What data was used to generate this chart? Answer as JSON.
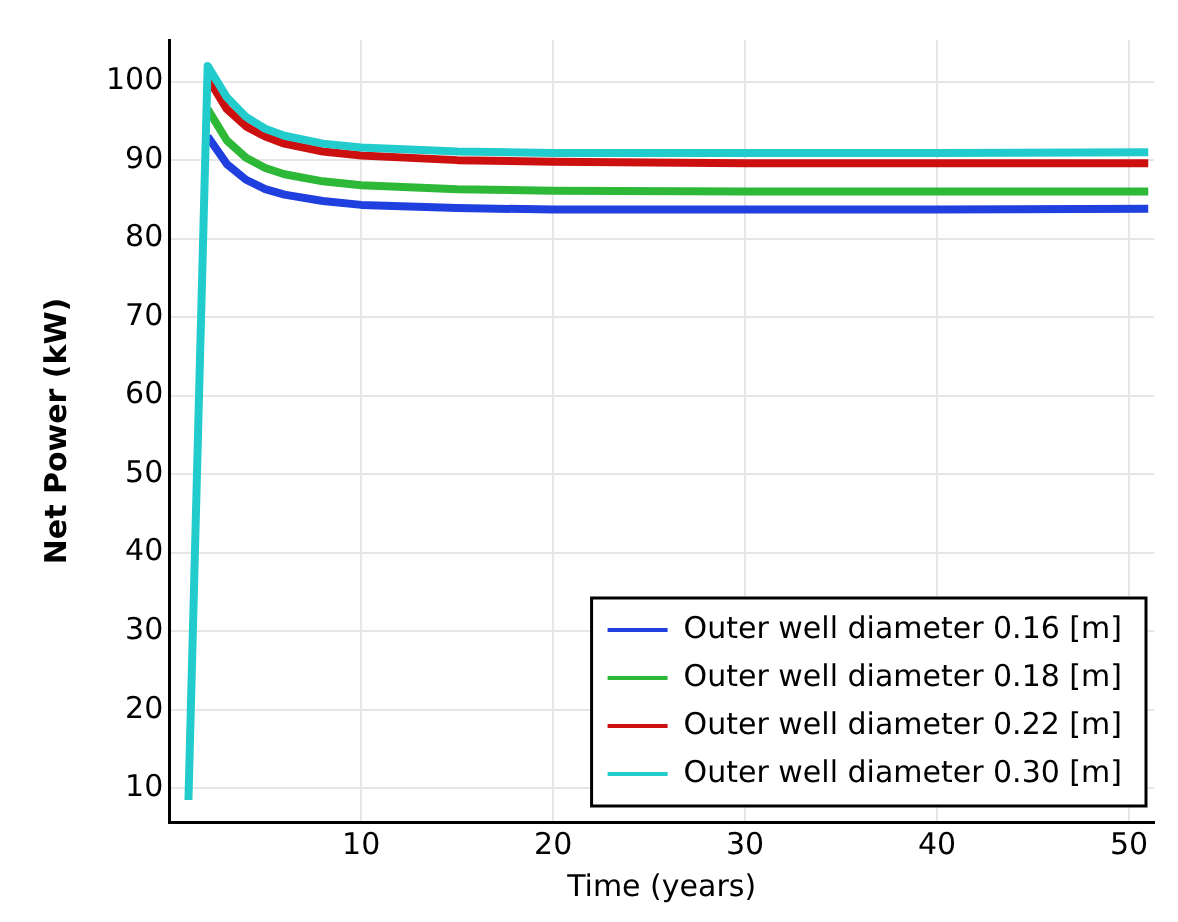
{
  "chart_data": {
    "type": "line",
    "xlabel": "Time (years)",
    "ylabel": "Net Power (kW)",
    "xlim": [
      0,
      51.3
    ],
    "ylim": [
      5.7,
      105.3
    ],
    "xticks": [
      10,
      20,
      30,
      40,
      50
    ],
    "yticks": [
      10,
      20,
      30,
      40,
      50,
      60,
      70,
      80,
      90,
      100
    ],
    "grid": true,
    "legend": "bottom right",
    "marker": "none",
    "line_style": "solid",
    "series": [
      {
        "name": "Outer well diameter 0.16 [m]",
        "color": "#1f3fdf",
        "x": [
          2,
          3,
          4,
          5,
          6,
          8,
          10,
          15,
          20,
          30,
          40,
          51
        ],
        "values": [
          93,
          89.5,
          87.5,
          86.3,
          85.6,
          84.8,
          84.3,
          83.9,
          83.7,
          83.7,
          83.7,
          83.8
        ]
      },
      {
        "name": "Outer well diameter 0.18 [m]",
        "color": "#2db838",
        "x": [
          2,
          3,
          4,
          5,
          6,
          8,
          10,
          15,
          20,
          30,
          40,
          51
        ],
        "values": [
          96.5,
          92.5,
          90.3,
          89,
          88.2,
          87.3,
          86.8,
          86.3,
          86.1,
          86,
          86,
          86
        ]
      },
      {
        "name": "Outer well diameter 0.22 [m]",
        "color": "#cc1010",
        "x": [
          2,
          3,
          4,
          5,
          6,
          8,
          10,
          15,
          20,
          30,
          40,
          51
        ],
        "values": [
          100.5,
          96.5,
          94.3,
          93,
          92.1,
          91.1,
          90.6,
          90,
          89.8,
          89.6,
          89.6,
          89.6
        ]
      },
      {
        "name": "Outer well diameter 0.30 [m]",
        "color": "#22cccc",
        "x": [
          1,
          2,
          3,
          4,
          5,
          6,
          8,
          10,
          15,
          20,
          30,
          40,
          51
        ],
        "values": [
          8.5,
          102,
          98,
          95.5,
          94,
          93.1,
          92.1,
          91.6,
          91.1,
          90.9,
          90.9,
          90.9,
          91
        ]
      }
    ]
  }
}
